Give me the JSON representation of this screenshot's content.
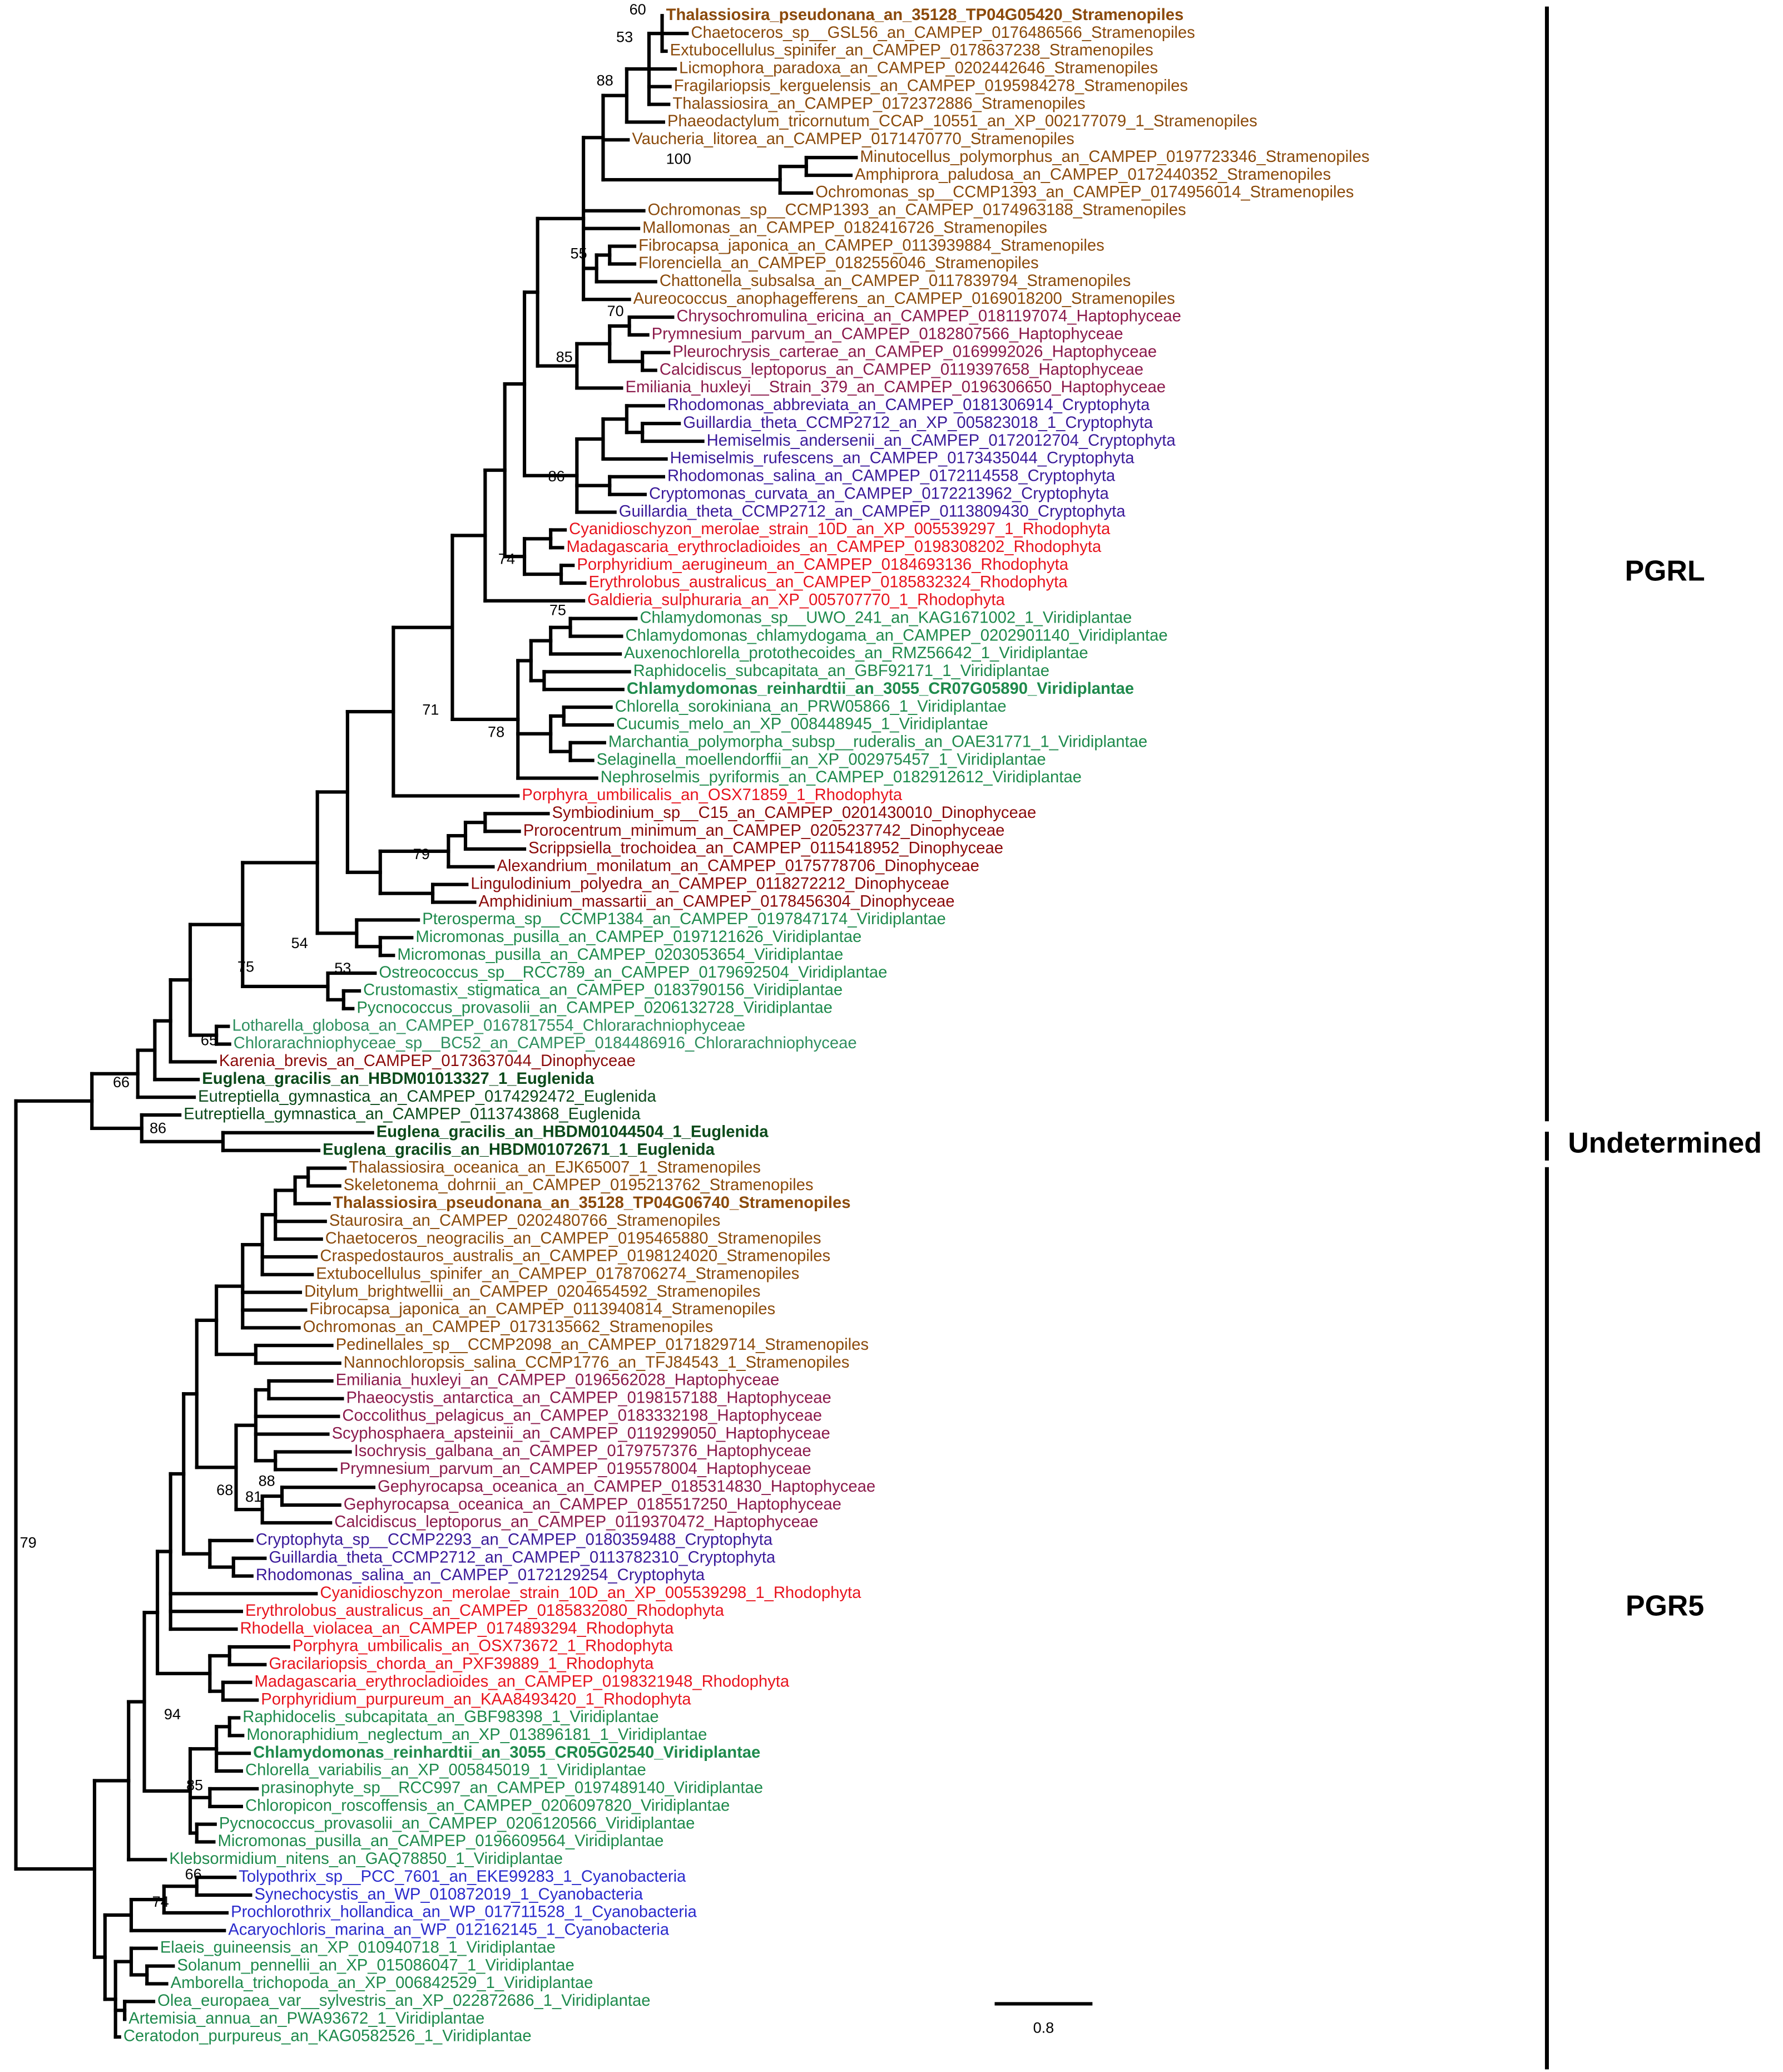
{
  "leaves": [
    {
      "label": "Thalassiosira_pseudonana_an_35128_TP04G05420_Stramenopiles",
      "color": "#8b4a0b",
      "bold": true
    },
    {
      "label": "Chaetoceros_sp__GSL56_an_CAMPEP_0176486566_Stramenopiles",
      "color": "#8b4a0b"
    },
    {
      "label": "Extubocellulus_spinifer_an_CAMPEP_0178637238_Stramenopiles",
      "color": "#8b4a0b"
    },
    {
      "label": "Licmophora_paradoxa_an_CAMPEP_0202442646_Stramenopiles",
      "color": "#8b4a0b"
    },
    {
      "label": "Fragilariopsis_kerguelensis_an_CAMPEP_0195984278_Stramenopiles",
      "color": "#8b4a0b"
    },
    {
      "label": "Thalassiosira_an_CAMPEP_0172372886_Stramenopiles",
      "color": "#8b4a0b"
    },
    {
      "label": "Phaeodactylum_tricornutum_CCAP_10551_an_XP_002177079_1_Stramenopiles",
      "color": "#8b4a0b"
    },
    {
      "label": "Vaucheria_litorea_an_CAMPEP_0171470770_Stramenopiles",
      "color": "#8b4a0b"
    },
    {
      "label": "Minutocellus_polymorphus_an_CAMPEP_0197723346_Stramenopiles",
      "color": "#8b4a0b"
    },
    {
      "label": "Amphiprora_paludosa_an_CAMPEP_0172440352_Stramenopiles",
      "color": "#8b4a0b"
    },
    {
      "label": "Ochromonas_sp__CCMP1393_an_CAMPEP_0174956014_Stramenopiles",
      "color": "#8b4a0b"
    },
    {
      "label": "Ochromonas_sp__CCMP1393_an_CAMPEP_0174963188_Stramenopiles",
      "color": "#8b4a0b"
    },
    {
      "label": "Mallomonas_an_CAMPEP_0182416726_Stramenopiles",
      "color": "#8b4a0b"
    },
    {
      "label": "Fibrocapsa_japonica_an_CAMPEP_0113939884_Stramenopiles",
      "color": "#8b4a0b"
    },
    {
      "label": "Florenciella_an_CAMPEP_0182556046_Stramenopiles",
      "color": "#8b4a0b"
    },
    {
      "label": "Chattonella_subsalsa_an_CAMPEP_0117839794_Stramenopiles",
      "color": "#8b4a0b"
    },
    {
      "label": "Aureococcus_anophagefferens_an_CAMPEP_0169018200_Stramenopiles",
      "color": "#8b4a0b"
    },
    {
      "label": "Chrysochromulina_ericina_an_CAMPEP_0181197074_Haptophyceae",
      "color": "#8b1a4b"
    },
    {
      "label": "Prymnesium_parvum_an_CAMPEP_0182807566_Haptophyceae",
      "color": "#8b1a4b"
    },
    {
      "label": "Pleurochrysis_carterae_an_CAMPEP_0169992026_Haptophyceae",
      "color": "#8b1a4b"
    },
    {
      "label": "Calcidiscus_leptoporus_an_CAMPEP_0119397658_Haptophyceae",
      "color": "#8b1a4b"
    },
    {
      "label": "Emiliania_huxleyi__Strain_379_an_CAMPEP_0196306650_Haptophyceae",
      "color": "#8b1a4b"
    },
    {
      "label": "Rhodomonas_abbreviata_an_CAMPEP_0181306914_Cryptophyta",
      "color": "#3a1a9a"
    },
    {
      "label": "Guillardia_theta_CCMP2712_an_XP_005823018_1_Cryptophyta",
      "color": "#3a1a9a"
    },
    {
      "label": "Hemiselmis_andersenii_an_CAMPEP_0172012704_Cryptophyta",
      "color": "#3a1a9a"
    },
    {
      "label": "Hemiselmis_rufescens_an_CAMPEP_0173435044_Cryptophyta",
      "color": "#3a1a9a"
    },
    {
      "label": "Rhodomonas_salina_an_CAMPEP_0172114558_Cryptophyta",
      "color": "#3a1a9a"
    },
    {
      "label": "Cryptomonas_curvata_an_CAMPEP_0172213962_Cryptophyta",
      "color": "#3a1a9a"
    },
    {
      "label": "Guillardia_theta_CCMP2712_an_CAMPEP_0113809430_Cryptophyta",
      "color": "#3a1a9a"
    },
    {
      "label": "Cyanidioschyzon_merolae_strain_10D_an_XP_005539297_1_Rhodophyta",
      "color": "#e8141e"
    },
    {
      "label": "Madagascaria_erythrocladioides_an_CAMPEP_0198308202_Rhodophyta",
      "color": "#e8141e"
    },
    {
      "label": "Porphyridium_aerugineum_an_CAMPEP_0184693136_Rhodophyta",
      "color": "#e8141e"
    },
    {
      "label": "Erythrolobus_australicus_an_CAMPEP_0185832324_Rhodophyta",
      "color": "#e8141e"
    },
    {
      "label": "Galdieria_sulphuraria_an_XP_005707770_1_Rhodophyta",
      "color": "#e8141e"
    },
    {
      "label": "Chlamydomonas_sp__UWO_241_an_KAG1671002_1_Viridiplantae",
      "color": "#1e8a4c"
    },
    {
      "label": "Chlamydomonas_chlamydogama_an_CAMPEP_0202901140_Viridiplantae",
      "color": "#1e8a4c"
    },
    {
      "label": "Auxenochlorella_protothecoides_an_RMZ56642_1_Viridiplantae",
      "color": "#1e8a4c"
    },
    {
      "label": "Raphidocelis_subcapitata_an_GBF92171_1_Viridiplantae",
      "color": "#1e8a4c"
    },
    {
      "label": "Chlamydomonas_reinhardtii_an_3055_CR07G05890_Viridiplantae",
      "color": "#1e8a4c",
      "bold": true
    },
    {
      "label": "Chlorella_sorokiniana_an_PRW05866_1_Viridiplantae",
      "color": "#1e8a4c"
    },
    {
      "label": "Cucumis_melo_an_XP_008448945_1_Viridiplantae",
      "color": "#1e8a4c"
    },
    {
      "label": "Marchantia_polymorpha_subsp__ruderalis_an_OAE31771_1_Viridiplantae",
      "color": "#1e8a4c"
    },
    {
      "label": "Selaginella_moellendorffii_an_XP_002975457_1_Viridiplantae",
      "color": "#1e8a4c"
    },
    {
      "label": "Nephroselmis_pyriformis_an_CAMPEP_0182912612_Viridiplantae",
      "color": "#1e8a4c"
    },
    {
      "label": "Porphyra_umbilicalis_an_OSX71859_1_Rhodophyta",
      "color": "#e8141e"
    },
    {
      "label": "Symbiodinium_sp__C15_an_CAMPEP_0201430010_Dinophyceae",
      "color": "#8b0a0a"
    },
    {
      "label": "Prorocentrum_minimum_an_CAMPEP_0205237742_Dinophyceae",
      "color": "#8b0a0a"
    },
    {
      "label": "Scrippsiella_trochoidea_an_CAMPEP_0115418952_Dinophyceae",
      "color": "#8b0a0a"
    },
    {
      "label": "Alexandrium_monilatum_an_CAMPEP_0175778706_Dinophyceae",
      "color": "#8b0a0a"
    },
    {
      "label": "Lingulodinium_polyedra_an_CAMPEP_0118272212_Dinophyceae",
      "color": "#8b0a0a"
    },
    {
      "label": "Amphidinium_massartii_an_CAMPEP_0178456304_Dinophyceae",
      "color": "#8b0a0a"
    },
    {
      "label": "Pterosperma_sp__CCMP1384_an_CAMPEP_0197847174_Viridiplantae",
      "color": "#1e8a4c"
    },
    {
      "label": "Micromonas_pusilla_an_CAMPEP_0197121626_Viridiplantae",
      "color": "#1e8a4c"
    },
    {
      "label": "Micromonas_pusilla_an_CAMPEP_0203053654_Viridiplantae",
      "color": "#1e8a4c"
    },
    {
      "label": "Ostreococcus_sp__RCC789_an_CAMPEP_0179692504_Viridiplantae",
      "color": "#1e8a4c"
    },
    {
      "label": "Crustomastix_stigmatica_an_CAMPEP_0183790156_Viridiplantae",
      "color": "#1e8a4c"
    },
    {
      "label": "Pycnococcus_provasolii_an_CAMPEP_0206132728_Viridiplantae",
      "color": "#1e8a4c"
    },
    {
      "label": "Lotharella_globosa_an_CAMPEP_0167817554_Chlorarachniophyceae",
      "color": "#2f9060"
    },
    {
      "label": "Chlorarachniophyceae_sp__BC52_an_CAMPEP_0184486916_Chlorarachniophyceae",
      "color": "#2f9060"
    },
    {
      "label": "Karenia_brevis_an_CAMPEP_0173637044_Dinophyceae",
      "color": "#8b0a0a"
    },
    {
      "label": "Euglena_gracilis_an_HBDM01013327_1_Euglenida",
      "color": "#0b4a1a",
      "bold": true
    },
    {
      "label": "Eutreptiella_gymnastica_an_CAMPEP_0174292472_Euglenida",
      "color": "#0b4a1a"
    },
    {
      "label": "Eutreptiella_gymnastica_an_CAMPEP_0113743868_Euglenida",
      "color": "#0b4a1a"
    },
    {
      "label": "Euglena_gracilis_an_HBDM01044504_1_Euglenida",
      "color": "#0b4a1a",
      "bold": true
    },
    {
      "label": "Euglena_gracilis_an_HBDM01072671_1_Euglenida",
      "color": "#0b4a1a",
      "bold": true
    },
    {
      "label": "Thalassiosira_oceanica_an_EJK65007_1_Stramenopiles",
      "color": "#8b4a0b"
    },
    {
      "label": "Skeletonema_dohrnii_an_CAMPEP_0195213762_Stramenopiles",
      "color": "#8b4a0b"
    },
    {
      "label": "Thalassiosira_pseudonana_an_35128_TP04G06740_Stramenopiles",
      "color": "#8b4a0b",
      "bold": true
    },
    {
      "label": "Staurosira_an_CAMPEP_0202480766_Stramenopiles",
      "color": "#8b4a0b"
    },
    {
      "label": "Chaetoceros_neogracilis_an_CAMPEP_0195465880_Stramenopiles",
      "color": "#8b4a0b"
    },
    {
      "label": "Craspedostauros_australis_an_CAMPEP_0198124020_Stramenopiles",
      "color": "#8b4a0b"
    },
    {
      "label": "Extubocellulus_spinifer_an_CAMPEP_0178706274_Stramenopiles",
      "color": "#8b4a0b"
    },
    {
      "label": "Ditylum_brightwellii_an_CAMPEP_0204654592_Stramenopiles",
      "color": "#8b4a0b"
    },
    {
      "label": "Fibrocapsa_japonica_an_CAMPEP_0113940814_Stramenopiles",
      "color": "#8b4a0b"
    },
    {
      "label": "Ochromonas_an_CAMPEP_0173135662_Stramenopiles",
      "color": "#8b4a0b"
    },
    {
      "label": "Pedinellales_sp__CCMP2098_an_CAMPEP_0171829714_Stramenopiles",
      "color": "#8b4a0b"
    },
    {
      "label": "Nannochloropsis_salina_CCMP1776_an_TFJ84543_1_Stramenopiles",
      "color": "#8b4a0b"
    },
    {
      "label": "Emiliania_huxleyi_an_CAMPEP_0196562028_Haptophyceae",
      "color": "#8b1a4b"
    },
    {
      "label": "Phaeocystis_antarctica_an_CAMPEP_0198157188_Haptophyceae",
      "color": "#8b1a4b"
    },
    {
      "label": "Coccolithus_pelagicus_an_CAMPEP_0183332198_Haptophyceae",
      "color": "#8b1a4b"
    },
    {
      "label": "Scyphosphaera_apsteinii_an_CAMPEP_0119299050_Haptophyceae",
      "color": "#8b1a4b"
    },
    {
      "label": "Isochrysis_galbana_an_CAMPEP_0179757376_Haptophyceae",
      "color": "#8b1a4b"
    },
    {
      "label": "Prymnesium_parvum_an_CAMPEP_0195578004_Haptophyceae",
      "color": "#8b1a4b"
    },
    {
      "label": "Gephyrocapsa_oceanica_an_CAMPEP_0185314830_Haptophyceae",
      "color": "#8b1a4b"
    },
    {
      "label": "Gephyrocapsa_oceanica_an_CAMPEP_0185517250_Haptophyceae",
      "color": "#8b1a4b"
    },
    {
      "label": "Calcidiscus_leptoporus_an_CAMPEP_0119370472_Haptophyceae",
      "color": "#8b1a4b"
    },
    {
      "label": "Cryptophyta_sp__CCMP2293_an_CAMPEP_0180359488_Cryptophyta",
      "color": "#3a1a9a"
    },
    {
      "label": "Guillardia_theta_CCMP2712_an_CAMPEP_0113782310_Cryptophyta",
      "color": "#3a1a9a"
    },
    {
      "label": "Rhodomonas_salina_an_CAMPEP_0172129254_Cryptophyta",
      "color": "#3a1a9a"
    },
    {
      "label": "Cyanidioschyzon_merolae_strain_10D_an_XP_005539298_1_Rhodophyta",
      "color": "#e8141e"
    },
    {
      "label": "Erythrolobus_australicus_an_CAMPEP_0185832080_Rhodophyta",
      "color": "#e8141e"
    },
    {
      "label": "Rhodella_violacea_an_CAMPEP_0174893294_Rhodophyta",
      "color": "#e8141e"
    },
    {
      "label": "Porphyra_umbilicalis_an_OSX73672_1_Rhodophyta",
      "color": "#e8141e"
    },
    {
      "label": "Gracilariopsis_chorda_an_PXF39889_1_Rhodophyta",
      "color": "#e8141e"
    },
    {
      "label": "Madagascaria_erythrocladioides_an_CAMPEP_0198321948_Rhodophyta",
      "color": "#e8141e"
    },
    {
      "label": "Porphyridium_purpureum_an_KAA8493420_1_Rhodophyta",
      "color": "#e8141e"
    },
    {
      "label": "Raphidocelis_subcapitata_an_GBF98398_1_Viridiplantae",
      "color": "#1e8a4c"
    },
    {
      "label": "Monoraphidium_neglectum_an_XP_013896181_1_Viridiplantae",
      "color": "#1e8a4c"
    },
    {
      "label": "Chlamydomonas_reinhardtii_an_3055_CR05G02540_Viridiplantae",
      "color": "#1e8a4c",
      "bold": true
    },
    {
      "label": "Chlorella_variabilis_an_XP_005845019_1_Viridiplantae",
      "color": "#1e8a4c"
    },
    {
      "label": "prasinophyte_sp__RCC997_an_CAMPEP_0197489140_Viridiplantae",
      "color": "#1e8a4c"
    },
    {
      "label": "Chloropicon_roscoffensis_an_CAMPEP_0206097820_Viridiplantae",
      "color": "#1e8a4c"
    },
    {
      "label": "Pycnococcus_provasolii_an_CAMPEP_0206120566_Viridiplantae",
      "color": "#1e8a4c"
    },
    {
      "label": "Micromonas_pusilla_an_CAMPEP_0196609564_Viridiplantae",
      "color": "#1e8a4c"
    },
    {
      "label": "Klebsormidium_nitens_an_GAQ78850_1_Viridiplantae",
      "color": "#1e8a4c"
    },
    {
      "label": "Tolypothrix_sp__PCC_7601_an_EKE99283_1_Cyanobacteria",
      "color": "#2a2acc"
    },
    {
      "label": "Synechocystis_an_WP_010872019_1_Cyanobacteria",
      "color": "#2a2acc"
    },
    {
      "label": "Prochlorothrix_hollandica_an_WP_017711528_1_Cyanobacteria",
      "color": "#2a2acc"
    },
    {
      "label": "Acaryochloris_marina_an_WP_012162145_1_Cyanobacteria",
      "color": "#2a2acc"
    },
    {
      "label": "Elaeis_guineensis_an_XP_010940718_1_Viridiplantae",
      "color": "#1e8a4c"
    },
    {
      "label": "Solanum_pennellii_an_XP_015086047_1_Viridiplantae",
      "color": "#1e8a4c"
    },
    {
      "label": "Amborella_trichopoda_an_XP_006842529_1_Viridiplantae",
      "color": "#1e8a4c"
    },
    {
      "label": "Olea_europaea_var__sylvestris_an_XP_022872686_1_Viridiplantae",
      "color": "#1e8a4c"
    },
    {
      "label": "Artemisia_annua_an_PWA93672_1_Viridiplantae",
      "color": "#1e8a4c"
    },
    {
      "label": "Ceratodon_purpureus_an_KAG0582526_1_Viridiplantae",
      "color": "#1e8a4c"
    }
  ],
  "support_values": [
    60,
    53,
    88,
    100,
    55,
    70,
    85,
    86,
    74,
    75,
    71,
    78,
    79,
    54,
    75,
    53,
    65,
    66,
    86,
    88,
    68,
    81,
    94,
    85,
    66,
    74,
    79
  ],
  "clades": [
    "PGRL",
    "Undetermined",
    "PGR5"
  ],
  "scale_bar": 0.8
}
